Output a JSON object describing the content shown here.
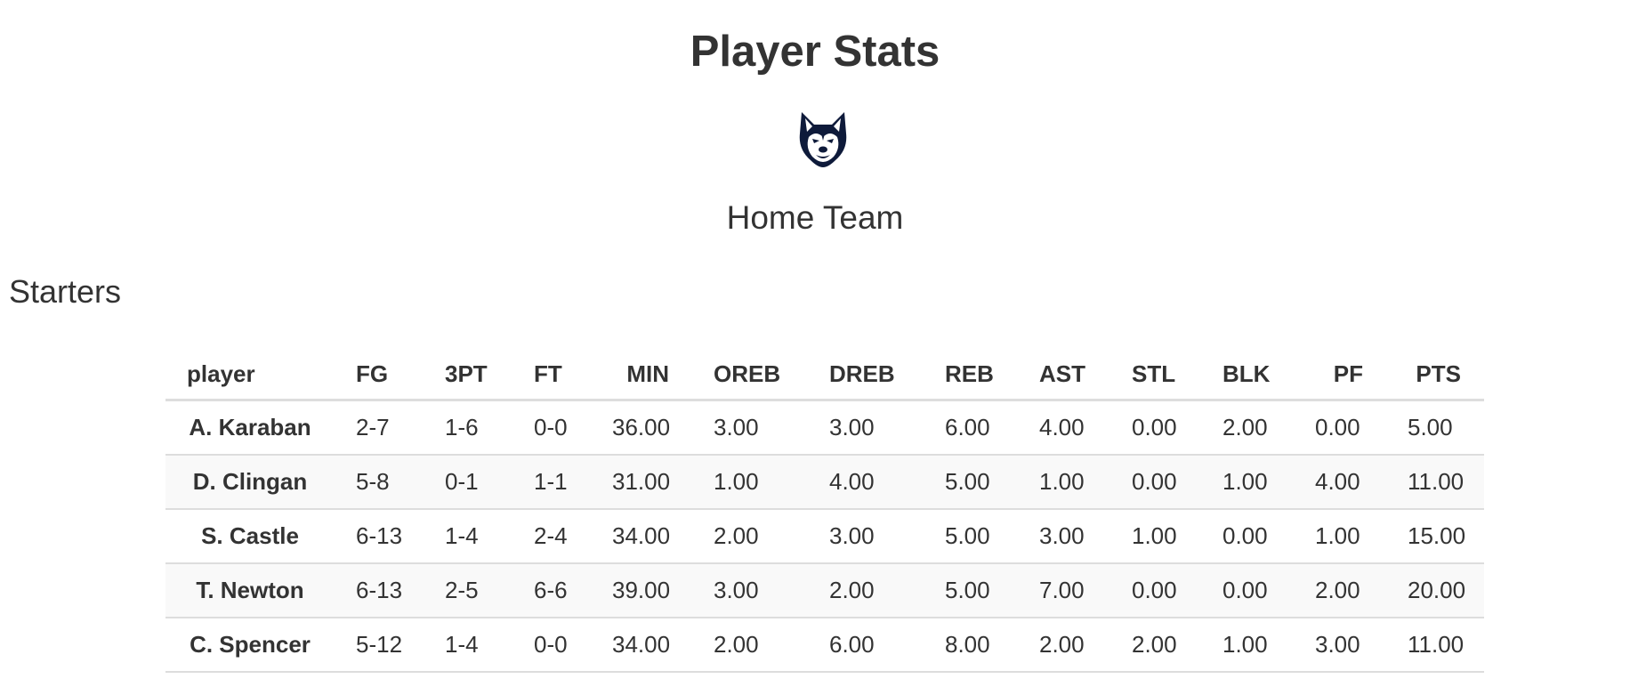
{
  "header": {
    "title": "Player Stats",
    "logo_icon": "husky-logo-icon",
    "team_name": "Home Team"
  },
  "section": {
    "title": "Starters"
  },
  "table": {
    "columns": [
      "player",
      "FG",
      "3PT",
      "FT",
      "MIN",
      "OREB",
      "DREB",
      "REB",
      "AST",
      "STL",
      "BLK",
      "PF",
      "PTS"
    ],
    "rows": [
      [
        "A. Karaban",
        "2-7",
        "1-6",
        "0-0",
        "36.00",
        "3.00",
        "3.00",
        "6.00",
        "4.00",
        "0.00",
        "2.00",
        "0.00",
        "5.00"
      ],
      [
        "D. Clingan",
        "5-8",
        "0-1",
        "1-1",
        "31.00",
        "1.00",
        "4.00",
        "5.00",
        "1.00",
        "0.00",
        "1.00",
        "4.00",
        "11.00"
      ],
      [
        "S. Castle",
        "6-13",
        "1-4",
        "2-4",
        "34.00",
        "2.00",
        "3.00",
        "5.00",
        "3.00",
        "1.00",
        "0.00",
        "1.00",
        "15.00"
      ],
      [
        "T. Newton",
        "6-13",
        "2-5",
        "6-6",
        "39.00",
        "3.00",
        "2.00",
        "5.00",
        "7.00",
        "0.00",
        "0.00",
        "2.00",
        "20.00"
      ],
      [
        "C. Spencer",
        "5-12",
        "1-4",
        "0-0",
        "34.00",
        "2.00",
        "6.00",
        "8.00",
        "2.00",
        "2.00",
        "1.00",
        "3.00",
        "11.00"
      ]
    ]
  },
  "colors": {
    "text": "#333333",
    "logo_navy": "#0e1a3a",
    "row_alt": "#f9f9f9",
    "border": "#dddddd"
  }
}
